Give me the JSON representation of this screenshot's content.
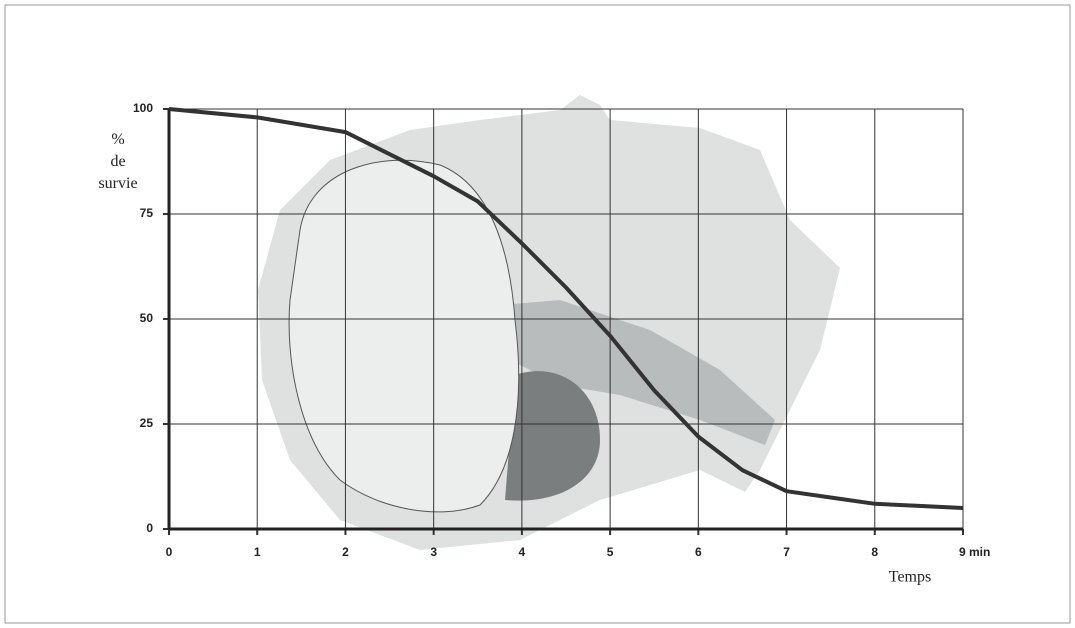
{
  "chart_data": {
    "type": "line",
    "x_label": "Temps",
    "y_label": [
      "%",
      "de",
      "survie"
    ],
    "x": [
      0,
      1,
      2,
      3,
      3.5,
      4,
      4.5,
      5,
      5.5,
      6,
      6.5,
      7,
      7.5,
      8,
      8.5,
      9
    ],
    "series": [
      {
        "color": "#333333",
        "values": [
          100,
          98,
          94.5,
          84,
          78,
          68,
          57.5,
          46,
          33,
          22,
          14,
          9,
          7.5,
          6,
          5.5,
          5
        ]
      }
    ],
    "xlim": [
      0,
      9
    ],
    "ylim": [
      0,
      100
    ],
    "xticks": [
      0,
      1,
      2,
      3,
      4,
      5,
      6,
      7,
      8,
      {
        "value": 9,
        "label": "9 min"
      }
    ],
    "yticks": [
      0,
      25,
      50,
      75,
      100
    ],
    "grid": true
  }
}
